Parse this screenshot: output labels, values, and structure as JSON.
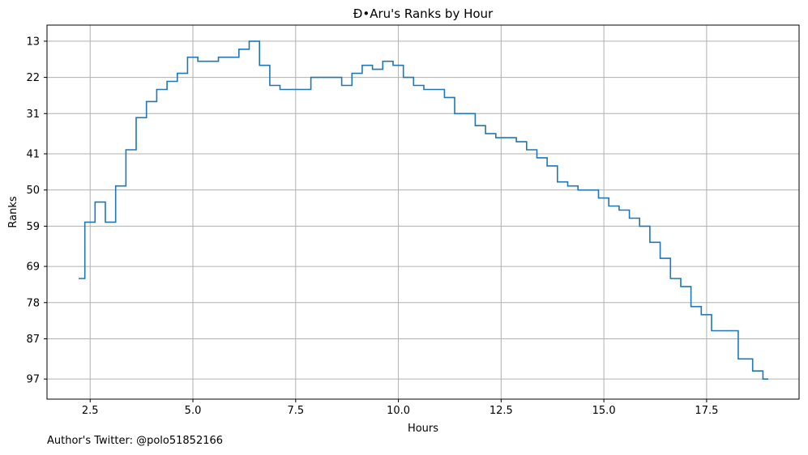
{
  "chart_data": {
    "type": "line",
    "drawstyle": "steps-post",
    "title": "Đ•Aru's Ranks by Hour",
    "xlabel": "Hours",
    "ylabel": "Ranks",
    "xlim": [
      1.45,
      19.75
    ],
    "ylim": [
      9,
      102
    ],
    "y_inverted": true,
    "grid": true,
    "x_ticks": [
      2.5,
      5.0,
      7.5,
      10.0,
      12.5,
      15.0,
      17.5
    ],
    "x_tick_labels": [
      "2.5",
      "5.0",
      "7.5",
      "10.0",
      "12.5",
      "15.0",
      "17.5"
    ],
    "y_ticks": [
      13,
      22,
      31,
      41,
      50,
      59,
      69,
      78,
      87,
      97
    ],
    "y_tick_labels": [
      "13",
      "22",
      "31",
      "41",
      "50",
      "59",
      "69",
      "78",
      "87",
      "97"
    ],
    "color": "#1f77b4",
    "series": [
      {
        "x": [
          2.22,
          2.37,
          2.62,
          2.87,
          3.12,
          3.37,
          3.62,
          3.87,
          4.12,
          4.37,
          4.62,
          4.87,
          5.12,
          5.62,
          6.12,
          6.37,
          6.62,
          6.87,
          7.12,
          7.87,
          8.62,
          8.87,
          9.12,
          9.37,
          9.62,
          9.87,
          10.12,
          10.37,
          10.62,
          11.12,
          11.37,
          11.87,
          12.12,
          12.37,
          12.87,
          13.12,
          13.37,
          13.62,
          13.87,
          14.12,
          14.37,
          14.87,
          15.12,
          15.37,
          15.62,
          15.87,
          16.12,
          16.37,
          16.62,
          16.87,
          17.12,
          17.37,
          17.62,
          18.27,
          18.62,
          18.87,
          19.0
        ],
        "y": [
          72,
          58,
          53,
          58,
          49,
          40,
          32,
          28,
          25,
          23,
          21,
          17,
          18,
          17,
          15,
          13,
          19,
          24,
          25,
          22,
          24,
          21,
          19,
          20,
          18,
          19,
          22,
          24,
          25,
          27,
          31,
          34,
          36,
          37,
          38,
          40,
          42,
          44,
          48,
          49,
          50,
          52,
          54,
          55,
          57,
          59,
          63,
          67,
          72,
          74,
          79,
          81,
          85,
          92,
          95,
          97,
          97
        ]
      }
    ]
  },
  "footer": "Author's Twitter: @polo51852166"
}
